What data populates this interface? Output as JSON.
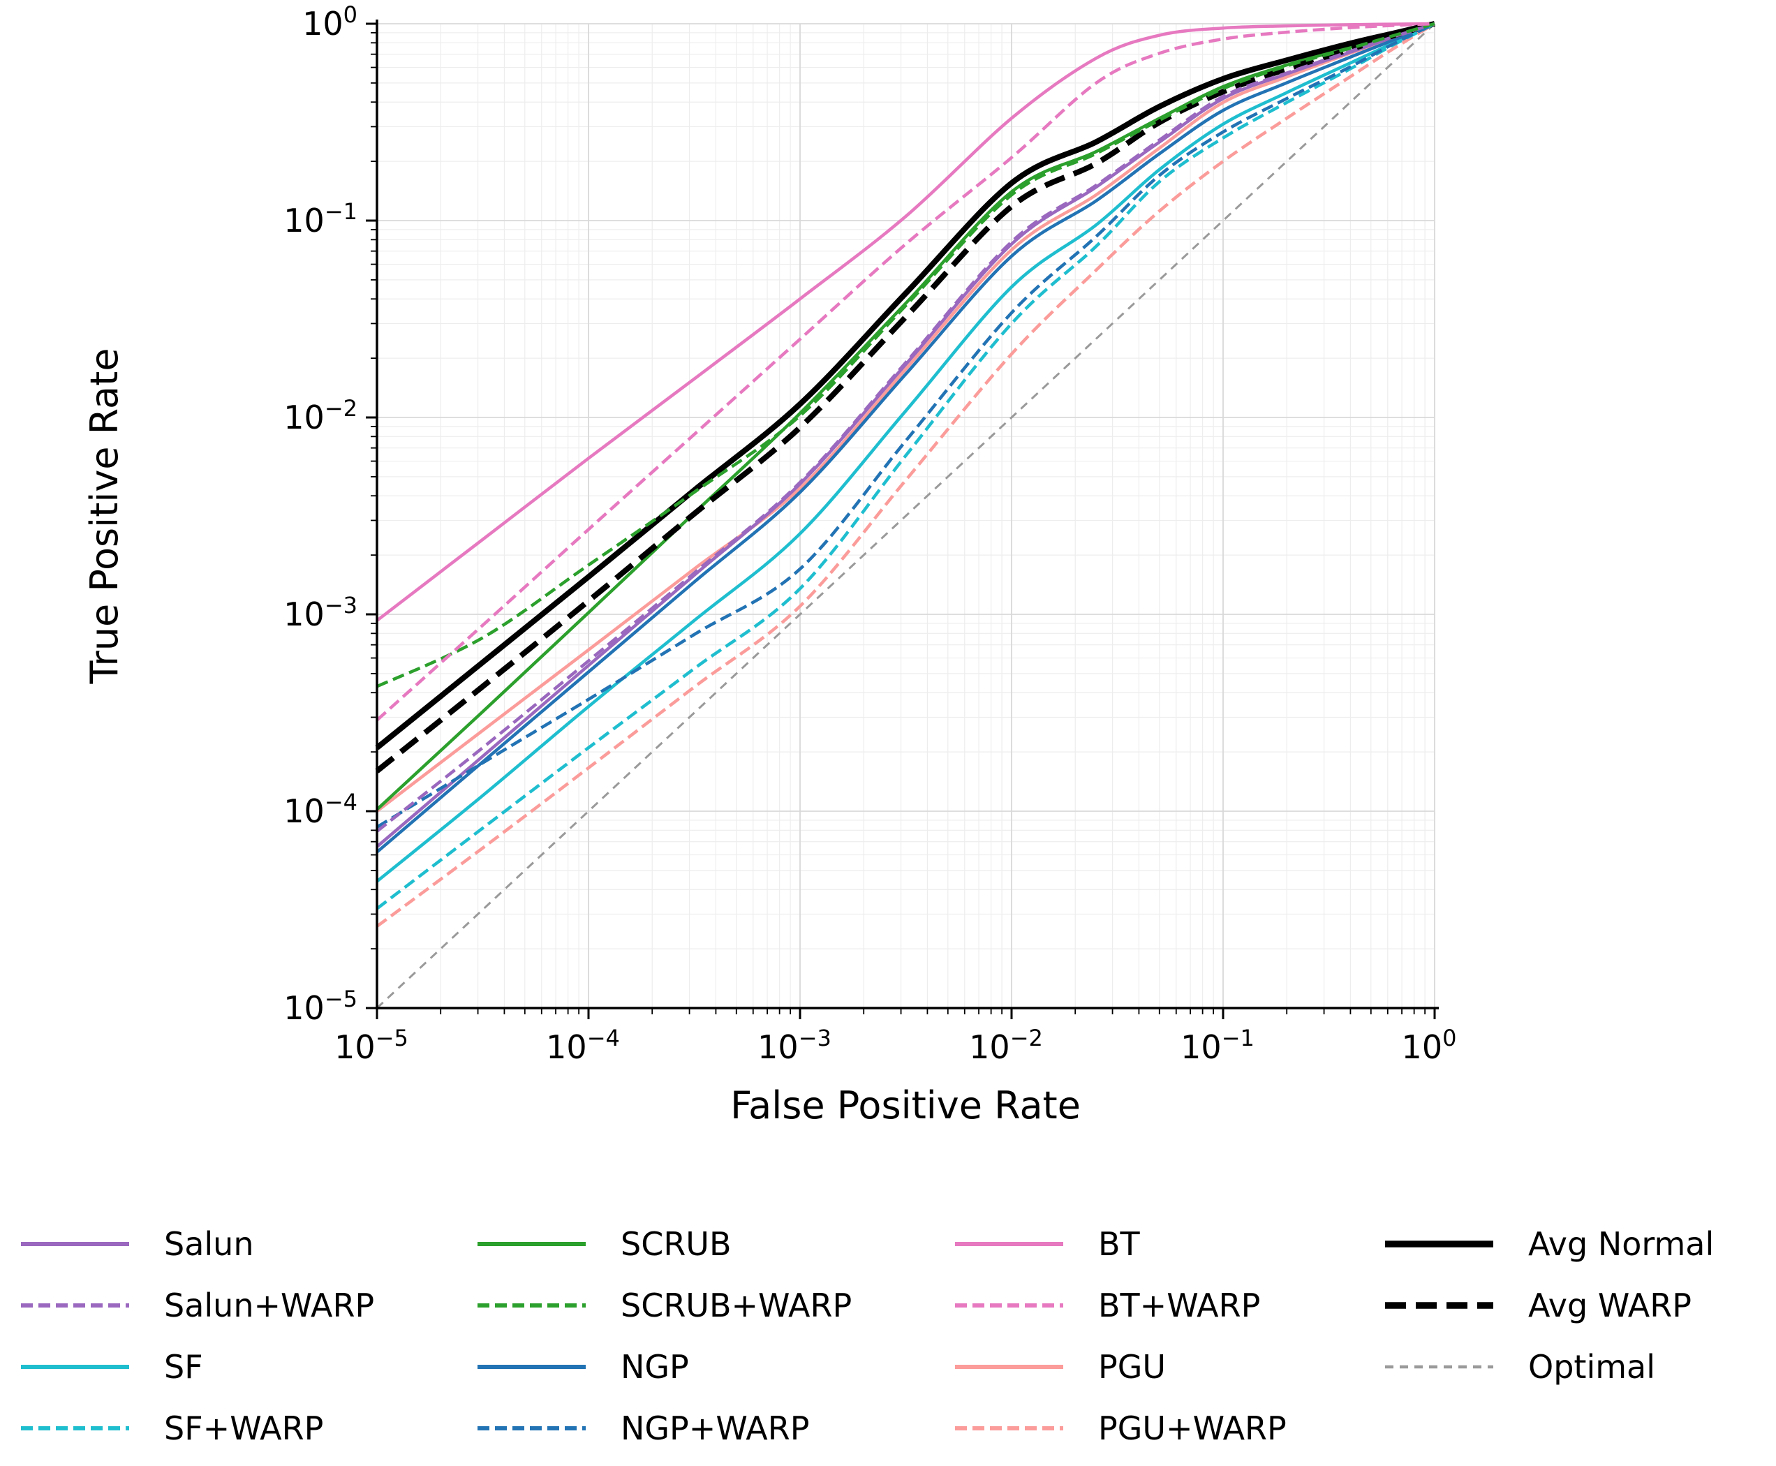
{
  "chart_data": {
    "type": "line",
    "title": "",
    "xlabel": "False Positive Rate",
    "ylabel": "True Positive Rate",
    "xscale": "log",
    "yscale": "log",
    "xlim": [
      1e-05,
      1
    ],
    "ylim": [
      1e-05,
      1
    ],
    "grid": {
      "major": true,
      "minor": true,
      "major_color": "#d9d9d9",
      "minor_color": "#ededed"
    },
    "x_tick_exponents": [
      -5,
      -4,
      -3,
      -2,
      -1,
      0
    ],
    "y_tick_exponents": [
      0,
      -1,
      -2,
      -3,
      -4,
      -5
    ],
    "x": [
      1e-05,
      3.16e-05,
      0.0001,
      0.000316,
      0.001,
      0.00316,
      0.01,
      0.0251,
      0.0501,
      0.1,
      0.2,
      0.398,
      0.631,
      1.0
    ],
    "series": [
      {
        "name": "Optimal",
        "color": "#9a9a9a",
        "width": 3,
        "dash": "12 9",
        "values": [
          1e-05,
          3.16e-05,
          0.0001,
          0.000316,
          0.001,
          0.00316,
          0.01,
          0.0251,
          0.0501,
          0.1,
          0.2,
          0.398,
          0.631,
          1.0
        ]
      },
      {
        "name": "PGU",
        "color": "#fb9c9a",
        "width": 4.5,
        "dash": "",
        "values": [
          0.0001,
          0.000257,
          0.00066,
          0.0017,
          0.00437,
          0.0176,
          0.071,
          0.135,
          0.234,
          0.398,
          0.537,
          0.708,
          0.841,
          1.0
        ]
      },
      {
        "name": "SF",
        "color": "#1fbecf",
        "width": 4.5,
        "dash": "",
        "values": [
          4.4e-05,
          0.00012,
          0.00034,
          0.00093,
          0.00257,
          0.0108,
          0.046,
          0.095,
          0.182,
          0.309,
          0.447,
          0.631,
          0.794,
          1.0
        ]
      },
      {
        "name": "NGP",
        "color": "#2273b4",
        "width": 4.5,
        "dash": "",
        "values": [
          6.2e-05,
          0.000178,
          0.00051,
          0.00146,
          0.00417,
          0.0166,
          0.066,
          0.126,
          0.219,
          0.363,
          0.501,
          0.676,
          0.822,
          1.0
        ]
      },
      {
        "name": "Salun",
        "color": "#9a68be",
        "width": 4.5,
        "dash": "",
        "values": [
          6.6e-05,
          0.00019,
          0.00055,
          0.00158,
          0.0046,
          0.0186,
          0.076,
          0.148,
          0.251,
          0.417,
          0.556,
          0.716,
          0.851,
          1.0
        ]
      },
      {
        "name": "SCRUB",
        "color": "#2ca02c",
        "width": 4.5,
        "dash": "",
        "values": [
          0.000102,
          0.00032,
          0.00102,
          0.00327,
          0.0105,
          0.038,
          0.14,
          0.224,
          0.331,
          0.479,
          0.617,
          0.759,
          0.871,
          1.0
        ]
      },
      {
        "name": "BT",
        "color": "#e679c0",
        "width": 4.5,
        "dash": "",
        "values": [
          0.00093,
          0.0024,
          0.0062,
          0.0157,
          0.04,
          0.105,
          0.331,
          0.668,
          0.875,
          0.951,
          0.975,
          0.989,
          0.995,
          1.0
        ]
      },
      {
        "name": "Avg Normal",
        "color": "#000000",
        "width": 8,
        "dash": "",
        "values": [
          0.00021,
          0.00057,
          0.00155,
          0.00427,
          0.0117,
          0.0427,
          0.155,
          0.251,
          0.38,
          0.525,
          0.653,
          0.794,
          0.891,
          1.0
        ]
      },
      {
        "name": "Avg WARP",
        "color": "#000000",
        "width": 8,
        "dash": "30 14",
        "values": [
          0.00016,
          0.00043,
          0.00117,
          0.00324,
          0.0089,
          0.0324,
          0.118,
          0.195,
          0.316,
          0.452,
          0.589,
          0.741,
          0.867,
          1.0
        ]
      },
      {
        "name": "PGU+WARP",
        "color": "#fb9c9a",
        "width": 4.5,
        "dash": "17 8",
        "values": [
          2.6e-05,
          6.5e-05,
          0.000166,
          0.000427,
          0.0011,
          0.0048,
          0.021,
          0.056,
          0.112,
          0.2,
          0.331,
          0.537,
          0.741,
          1.0
        ]
      },
      {
        "name": "SF+WARP",
        "color": "#1fbecf",
        "width": 4.5,
        "dash": "17 8",
        "values": [
          3.2e-05,
          8.2e-05,
          0.00021,
          0.00053,
          0.00135,
          0.0064,
          0.03,
          0.074,
          0.158,
          0.263,
          0.398,
          0.589,
          0.776,
          1.0
        ]
      },
      {
        "name": "NGP+WARP",
        "color": "#2273b4",
        "width": 4.5,
        "dash": "17 8",
        "values": [
          8.3e-05,
          0.000176,
          0.00037,
          0.00079,
          0.0017,
          0.0076,
          0.034,
          0.083,
          0.17,
          0.282,
          0.417,
          0.603,
          0.785,
          1.0
        ]
      },
      {
        "name": "Salun+WARP",
        "color": "#9a68be",
        "width": 4.5,
        "dash": "17 8",
        "values": [
          7.9e-05,
          0.00021,
          0.00058,
          0.00162,
          0.00468,
          0.019,
          0.078,
          0.151,
          0.257,
          0.427,
          0.562,
          0.724,
          0.855,
          1.0
        ]
      },
      {
        "name": "SCRUB+WARP",
        "color": "#2ca02c",
        "width": 4.5,
        "dash": "17 8",
        "values": [
          0.00043,
          0.00076,
          0.00178,
          0.00417,
          0.0102,
          0.037,
          0.135,
          0.219,
          0.324,
          0.468,
          0.61,
          0.75,
          0.867,
          1.0
        ]
      },
      {
        "name": "BT+WARP",
        "color": "#e679c0",
        "width": 4.5,
        "dash": "17 8",
        "values": [
          0.00029,
          0.00088,
          0.0027,
          0.0082,
          0.025,
          0.076,
          0.209,
          0.5,
          0.708,
          0.836,
          0.906,
          0.955,
          0.98,
          1.0
        ]
      }
    ],
    "legend": {
      "position": "below",
      "columns": [
        [
          "Salun",
          "Salun+WARP",
          "SF",
          "SF+WARP"
        ],
        [
          "SCRUB",
          "SCRUB+WARP",
          "NGP",
          "NGP+WARP"
        ],
        [
          "BT",
          "BT+WARP",
          "PGU",
          "PGU+WARP"
        ],
        [
          "Avg Normal",
          "Avg WARP",
          "Optimal"
        ]
      ]
    }
  }
}
